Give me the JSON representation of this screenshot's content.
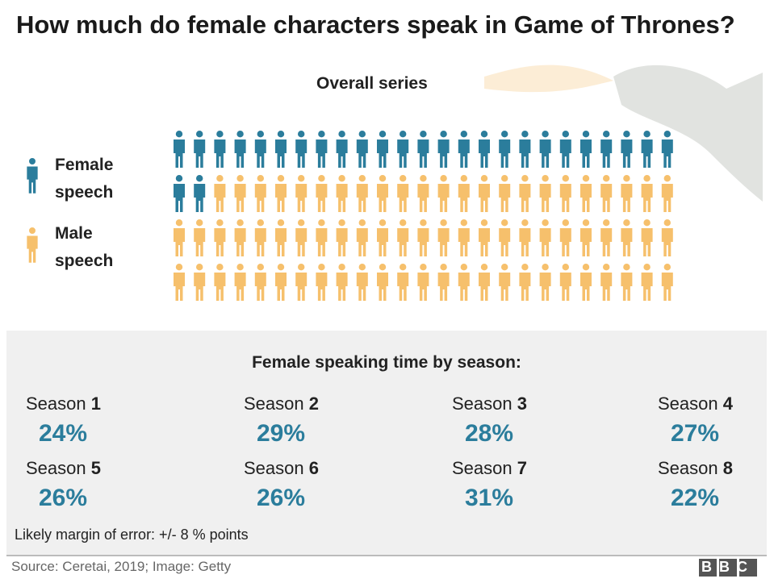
{
  "title": "How much do female characters speak in Game of Thrones?",
  "source": "Source: Ceretai, 2019; Image: Getty",
  "logo": "BBC",
  "chart_data": [
    {
      "type": "pictogram",
      "subtitle": "Overall series",
      "series": [
        {
          "name": "Female speech",
          "color": "#2b7d9c",
          "values": [
            27
          ]
        },
        {
          "name": "Male speech",
          "color": "#f6c06c",
          "values": [
            73
          ]
        }
      ]
    },
    {
      "type": "stat-grid",
      "title": "Female speaking time by season:",
      "category_prefix": "Season",
      "categories": [
        "1",
        "2",
        "3",
        "4",
        "5",
        "6",
        "7",
        "8"
      ],
      "values": [
        24,
        29,
        28,
        27,
        26,
        26,
        31,
        22
      ],
      "value_labels": [
        "24%",
        "29%",
        "28%",
        "27%",
        "26%",
        "26%",
        "31%",
        "22%"
      ],
      "color": "#2b7d9c",
      "note": "Likely margin of error: +/- 8 % points"
    }
  ]
}
